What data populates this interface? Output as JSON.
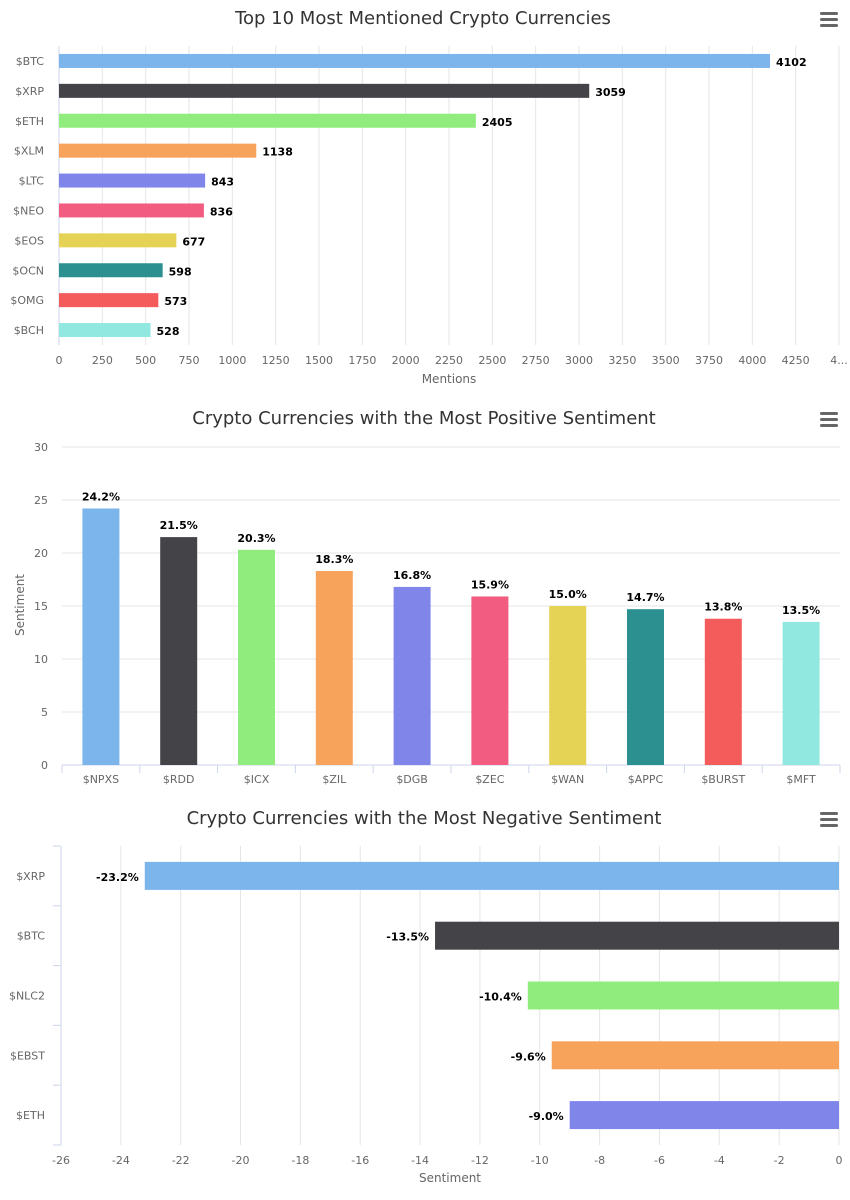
{
  "menu_icon": "hamburger-icon",
  "chart_data": [
    {
      "type": "bar",
      "orientation": "horizontal",
      "title": "Top 10 Most Mentioned Crypto Currencies",
      "xlabel": "Mentions",
      "ylabel": "",
      "categories": [
        "$BTC",
        "$XRP",
        "$ETH",
        "$XLM",
        "$LTC",
        "$NEO",
        "$EOS",
        "$OCN",
        "$OMG",
        "$BCH"
      ],
      "values": [
        4102,
        3059,
        2405,
        1138,
        843,
        836,
        677,
        598,
        573,
        528
      ],
      "data_labels": [
        "4102",
        "3059",
        "2405",
        "1138",
        "843",
        "836",
        "677",
        "598",
        "573",
        "528"
      ],
      "colors": [
        "#7cb5ec",
        "#434348",
        "#90ed7d",
        "#f7a35c",
        "#8085e9",
        "#f15c80",
        "#e4d354",
        "#2b908f",
        "#f45b5b",
        "#91e8e1"
      ],
      "xlim": [
        0,
        4500
      ],
      "ticks": [
        "0",
        "250",
        "500",
        "750",
        "1000",
        "1250",
        "1500",
        "1750",
        "2000",
        "2250",
        "2500",
        "2750",
        "3000",
        "3250",
        "3500",
        "3750",
        "4000",
        "4250",
        "4..."
      ],
      "grid": true,
      "legend": "none"
    },
    {
      "type": "bar",
      "orientation": "vertical",
      "title": "Crypto Currencies with the Most Positive Sentiment",
      "xlabel": "",
      "ylabel": "Sentiment",
      "categories": [
        "$NPXS",
        "$RDD",
        "$ICX",
        "$ZIL",
        "$DGB",
        "$ZEC",
        "$WAN",
        "$APPC",
        "$BURST",
        "$MFT"
      ],
      "values": [
        24.2,
        21.5,
        20.3,
        18.3,
        16.8,
        15.9,
        15.0,
        14.7,
        13.8,
        13.5
      ],
      "data_labels": [
        "24.2%",
        "21.5%",
        "20.3%",
        "18.3%",
        "16.8%",
        "15.9%",
        "15.0%",
        "14.7%",
        "13.8%",
        "13.5%"
      ],
      "colors": [
        "#7cb5ec",
        "#434348",
        "#90ed7d",
        "#f7a35c",
        "#8085e9",
        "#f15c80",
        "#e4d354",
        "#2b908f",
        "#f45b5b",
        "#91e8e1"
      ],
      "ylim": [
        0,
        30
      ],
      "ticks": [
        "0",
        "5",
        "10",
        "15",
        "20",
        "25",
        "30"
      ],
      "grid": true,
      "legend": "none"
    },
    {
      "type": "bar",
      "orientation": "horizontal",
      "title": "Crypto Currencies with the Most Negative Sentiment",
      "xlabel": "Sentiment",
      "ylabel": "",
      "categories": [
        "$XRP",
        "$BTC",
        "$NLC2",
        "$EBST",
        "$ETH"
      ],
      "values": [
        -23.2,
        -13.5,
        -10.4,
        -9.6,
        -9.0
      ],
      "data_labels": [
        "-23.2%",
        "-13.5%",
        "-10.4%",
        "-9.6%",
        "-9.0%"
      ],
      "colors": [
        "#7cb5ec",
        "#434348",
        "#90ed7d",
        "#f7a35c",
        "#8085e9"
      ],
      "xlim": [
        -26,
        0
      ],
      "ticks": [
        "-26",
        "-24",
        "-22",
        "-20",
        "-18",
        "-16",
        "-14",
        "-12",
        "-10",
        "-8",
        "-6",
        "-4",
        "-2",
        "0"
      ],
      "grid": true,
      "legend": "none"
    }
  ]
}
